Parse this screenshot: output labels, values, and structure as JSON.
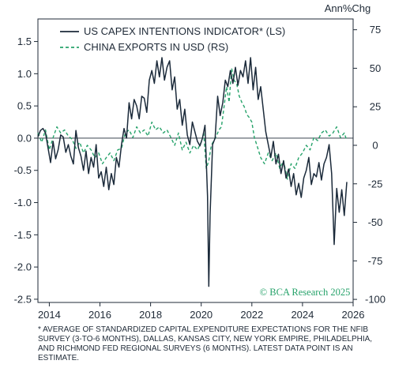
{
  "chart_data": {
    "type": "line",
    "right_axis_unit": "Ann%Chg",
    "x_ticks": [
      2014,
      2016,
      2018,
      2020,
      2022,
      2024,
      2026
    ],
    "xlim": [
      2013.55,
      2026.0
    ],
    "ylim_left": [
      -2.55,
      1.85
    ],
    "ylim_right": [
      -102,
      82
    ],
    "left_ticks": [
      1.5,
      1.0,
      0.5,
      0.0,
      -0.5,
      -1.0,
      -1.5,
      -2.0,
      -2.5
    ],
    "right_ticks": [
      75,
      50,
      25,
      0,
      -25,
      -50,
      -75,
      -100
    ],
    "left_tick_labels": [
      "1.5",
      "1.0",
      "0.5",
      "0.0",
      "-0.5",
      "-1.0",
      "-1.5",
      "-2.0",
      "-2.5"
    ],
    "right_tick_labels": [
      "75",
      "50",
      "25",
      "0",
      "-25",
      "-50",
      "-75",
      "-100"
    ],
    "x_tick_labels": [
      "2014",
      "2016",
      "2018",
      "2020",
      "2022",
      "2024",
      "2026"
    ],
    "series": [
      {
        "name": "US CAPEX INTENTIONS INDICATOR* (LS)",
        "axis": "left",
        "color": "#1b2a3a",
        "dash": "solid",
        "x": [
          2013.55,
          2013.65,
          2013.75,
          2013.85,
          2013.95,
          2014.05,
          2014.15,
          2014.25,
          2014.35,
          2014.45,
          2014.55,
          2014.65,
          2014.75,
          2014.85,
          2014.95,
          2015.05,
          2015.15,
          2015.25,
          2015.35,
          2015.45,
          2015.55,
          2015.65,
          2015.75,
          2015.85,
          2015.95,
          2016.05,
          2016.15,
          2016.25,
          2016.35,
          2016.45,
          2016.55,
          2016.65,
          2016.75,
          2016.85,
          2016.95,
          2017.05,
          2017.15,
          2017.25,
          2017.35,
          2017.45,
          2017.55,
          2017.65,
          2017.75,
          2017.85,
          2017.95,
          2018.05,
          2018.15,
          2018.25,
          2018.35,
          2018.45,
          2018.55,
          2018.65,
          2018.75,
          2018.85,
          2018.95,
          2019.05,
          2019.15,
          2019.25,
          2019.35,
          2019.45,
          2019.55,
          2019.65,
          2019.75,
          2019.85,
          2019.95,
          2020.05,
          2020.15,
          2020.25,
          2020.3,
          2020.35,
          2020.45,
          2020.55,
          2020.65,
          2020.75,
          2020.85,
          2020.95,
          2021.05,
          2021.15,
          2021.25,
          2021.35,
          2021.45,
          2021.55,
          2021.65,
          2021.75,
          2021.85,
          2021.95,
          2022.05,
          2022.15,
          2022.25,
          2022.35,
          2022.45,
          2022.55,
          2022.65,
          2022.75,
          2022.85,
          2022.95,
          2023.05,
          2023.15,
          2023.25,
          2023.35,
          2023.45,
          2023.55,
          2023.65,
          2023.75,
          2023.85,
          2023.95,
          2024.05,
          2024.15,
          2024.25,
          2024.35,
          2024.45,
          2024.55,
          2024.65,
          2024.75,
          2024.85,
          2024.95,
          2025.05,
          2025.15,
          2025.25,
          2025.35,
          2025.45,
          2025.55,
          2025.65,
          2025.75
        ],
        "values": [
          0.02,
          0.12,
          0.15,
          0.08,
          -0.15,
          -0.38,
          -0.05,
          -0.32,
          -0.18,
          0.05,
          0.02,
          -0.22,
          -0.1,
          -0.28,
          -0.4,
          0.12,
          -0.15,
          -0.28,
          -0.5,
          -0.2,
          -0.55,
          -0.3,
          -0.45,
          -0.1,
          -0.62,
          -0.52,
          -0.75,
          -0.45,
          -0.8,
          -0.55,
          -0.72,
          -0.3,
          -0.45,
          -0.1,
          0.15,
          0.0,
          0.55,
          0.3,
          0.6,
          0.5,
          0.3,
          0.65,
          0.62,
          0.4,
          0.9,
          1.05,
          0.85,
          1.2,
          0.95,
          1.25,
          0.9,
          1.1,
          1.2,
          0.75,
          0.95,
          0.45,
          0.6,
          0.2,
          0.45,
          0.05,
          -0.1,
          0.25,
          0.1,
          -0.05,
          -0.12,
          0.0,
          0.2,
          -0.9,
          -2.3,
          -1.2,
          -0.1,
          0.0,
          0.65,
          0.35,
          0.55,
          0.9,
          0.8,
          1.05,
          0.85,
          1.1,
          0.82,
          1.05,
          0.95,
          1.2,
          0.85,
          1.25,
          0.75,
          1.1,
          0.6,
          0.8,
          0.45,
          0.1,
          -0.1,
          -0.3,
          -0.05,
          -0.4,
          -0.25,
          -0.55,
          -0.35,
          -0.62,
          -0.48,
          -0.75,
          -0.55,
          -0.88,
          -0.7,
          -0.92,
          -0.62,
          -0.5,
          -0.3,
          -0.72,
          -0.55,
          -0.6,
          -0.38,
          -0.65,
          -0.4,
          -0.3,
          -0.1,
          -0.55,
          -1.65,
          -0.78,
          -1.15,
          -0.8,
          -1.2,
          -0.68
        ]
      },
      {
        "name": "CHINA EXPORTS IN USD (RS)",
        "axis": "right",
        "color": "#27a36b",
        "dash": "dashed",
        "x": [
          2013.55,
          2013.7,
          2013.85,
          2014.0,
          2014.15,
          2014.3,
          2014.45,
          2014.6,
          2014.75,
          2014.9,
          2015.05,
          2015.2,
          2015.35,
          2015.5,
          2015.65,
          2015.8,
          2015.95,
          2016.1,
          2016.25,
          2016.4,
          2016.55,
          2016.7,
          2016.85,
          2017.0,
          2017.15,
          2017.3,
          2017.45,
          2017.6,
          2017.75,
          2017.9,
          2018.05,
          2018.2,
          2018.35,
          2018.5,
          2018.65,
          2018.8,
          2018.95,
          2019.1,
          2019.25,
          2019.4,
          2019.55,
          2019.7,
          2019.85,
          2020.0,
          2020.1,
          2020.2,
          2020.3,
          2020.4,
          2020.5,
          2020.6,
          2020.7,
          2020.8,
          2020.9,
          2021.0,
          2021.1,
          2021.2,
          2021.3,
          2021.4,
          2021.5,
          2021.6,
          2021.7,
          2021.8,
          2021.9,
          2022.0,
          2022.1,
          2022.2,
          2022.35,
          2022.5,
          2022.65,
          2022.8,
          2022.95,
          2023.1,
          2023.25,
          2023.4,
          2023.55,
          2023.7,
          2023.85,
          2024.0,
          2024.15,
          2024.3,
          2024.45,
          2024.6,
          2024.75,
          2024.9,
          2025.05,
          2025.2,
          2025.35,
          2025.5,
          2025.65,
          2025.75
        ],
        "values": [
          8,
          2,
          10,
          -3,
          5,
          12,
          8,
          10,
          6,
          4,
          -2,
          2,
          -5,
          0,
          -3,
          -8,
          -5,
          -12,
          -8,
          -5,
          -10,
          -3,
          -2,
          8,
          10,
          5,
          12,
          8,
          10,
          6,
          15,
          10,
          12,
          8,
          10,
          5,
          0,
          8,
          -3,
          2,
          -5,
          0,
          -3,
          2,
          8,
          -15,
          -10,
          0,
          3,
          6,
          10,
          12,
          25,
          38,
          28,
          50,
          42,
          40,
          32,
          28,
          25,
          20,
          18,
          15,
          5,
          0,
          -8,
          -12,
          -5,
          -10,
          -5,
          -15,
          -10,
          -22,
          -12,
          -15,
          -8,
          -5,
          0,
          -3,
          5,
          3,
          8,
          10,
          6,
          8,
          12,
          5,
          8,
          3
        ]
      }
    ]
  },
  "labels": {
    "unit_label": "Ann%Chg",
    "watermark": "© BCA Research 2025",
    "legend_us": "US CAPEX INTENTIONS INDICATOR* (LS)",
    "legend_china": "CHINA EXPORTS IN USD (RS)",
    "footnote": "* AVERAGE OF STANDARDIZED CAPITAL EXPENDITURE EXPECTATIONS FOR THE NFIB SURVEY (3-TO-6 MONTHS), DALLAS, KANSAS CITY, NEW YORK EMPIRE, PHILADELPHIA, AND RICHMOND FED REGIONAL SURVEYS (6 MONTHS). LATEST DATA POINT IS AN ESTIMATE."
  }
}
